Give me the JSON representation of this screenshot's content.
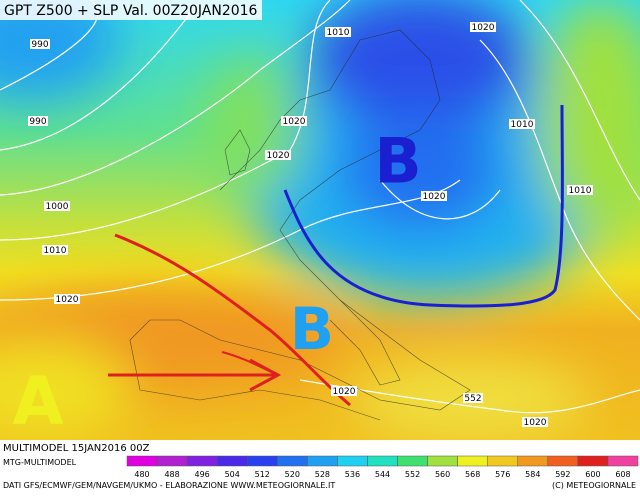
{
  "header": {
    "title": "GPT Z500 + SLP Val. 00Z20JAN2016"
  },
  "map": {
    "pressure_centers": [
      "B",
      "B",
      "A"
    ],
    "isobar_labels": [
      "990",
      "990",
      "1010",
      "1020",
      "1020",
      "1020",
      "1010",
      "1000",
      "1010",
      "1020",
      "1010",
      "1020",
      "1020",
      "552",
      "1020"
    ]
  },
  "footer": {
    "run": "MULTIMODEL 15JAN2016 00Z",
    "source": "MTG-MULTIMODEL",
    "credits": "DATI GFS/ECMWF/GEM/NAVGEM/UKMO - ELABORAZIONE WWW.METEOGIORNALE.IT",
    "copyright": "(C) METEOGIORNALE"
  },
  "legend": {
    "values": [
      480,
      488,
      496,
      504,
      512,
      520,
      528,
      536,
      544,
      552,
      560,
      568,
      576,
      584,
      592,
      600,
      608
    ],
    "colors": [
      "#e000e0",
      "#b020d0",
      "#8020e0",
      "#4a2ae8",
      "#2a40f0",
      "#2070f0",
      "#20a0f0",
      "#20d0f0",
      "#20e0c0",
      "#40e070",
      "#a0e040",
      "#f0f020",
      "#f0c820",
      "#f09820",
      "#f06020",
      "#e02020",
      "#f040a0"
    ]
  }
}
